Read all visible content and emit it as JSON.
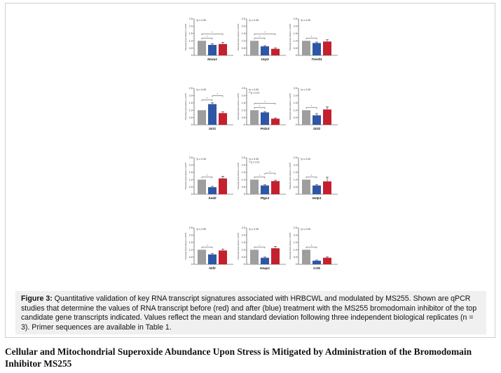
{
  "figure": {
    "caption_label": "Figure 3:",
    "caption_text": " Quantitative validation of key RNA transcript signatures associated with HRBCWL and modulated by MS255. Shown are qPCR studies that determine the values of RNA transcript before (red) and after (blue) treatment with the MS255 bromodomain inhibitor of the top candidate gene transcripts indicated. Values reflect the mean and standard deviation following three independent biological replicates (n = 3). Primer sequences are available in Table 1."
  },
  "section_heading": "Cellular and Mitochondrial Superoxide Abundance Upon Stress is Mitigated by Administration of the Bromodomain Inhibitor MS255",
  "colors": {
    "control": "#9e9e9e",
    "after": "#2e56a6",
    "before": "#c4202e"
  },
  "chart_data": [
    {
      "type": "bar",
      "xlabel": "Noxa1",
      "ylabel": "Transcript levels relative to HPRT",
      "ylim": [
        0,
        2.5
      ],
      "yticks": [
        "0",
        "0.5",
        "1.0",
        "1.5",
        "2.0",
        "2.5"
      ],
      "values": [
        1.0,
        0.72,
        0.78
      ],
      "errors": [
        0.0,
        0.08,
        0.1
      ],
      "significance": [
        "*p ≤ 0.05"
      ],
      "brackets": [
        [
          0,
          1
        ],
        [
          0,
          2
        ]
      ]
    },
    {
      "type": "bar",
      "xlabel": "Ucp3",
      "ylabel": "Transcript levels relative to HPRT",
      "ylim": [
        0,
        2.5
      ],
      "yticks": [
        "0",
        "0.5",
        "1.0",
        "1.5",
        "2.0",
        "2.5"
      ],
      "values": [
        1.0,
        0.62,
        0.45
      ],
      "errors": [
        0.0,
        0.05,
        0.07
      ],
      "significance": [
        "*p ≤ 0.05"
      ],
      "brackets": [
        [
          0,
          1
        ],
        [
          0,
          2
        ]
      ]
    },
    {
      "type": "bar",
      "xlabel": "Txnrd1",
      "ylabel": "Transcript levels relative to HPRT",
      "ylim": [
        0,
        2.5
      ],
      "yticks": [
        "0",
        "0.5",
        "1.0",
        "1.5",
        "2.0",
        "2.5"
      ],
      "values": [
        1.0,
        0.85,
        0.95
      ],
      "errors": [
        0.0,
        0.06,
        0.12
      ],
      "significance": [
        "*p ≤ 0.05"
      ],
      "brackets": [
        [
          0,
          1
        ]
      ]
    },
    {
      "type": "bar",
      "xlabel": "Sirt1",
      "ylabel": "Transcript levels relative to HPRT",
      "ylim": [
        0,
        2.5
      ],
      "yticks": [
        "0",
        "0.5",
        "1.0",
        "1.5",
        "2.0",
        "2.5"
      ],
      "values": [
        1.0,
        1.42,
        0.8
      ],
      "errors": [
        0.0,
        0.1,
        0.08
      ],
      "significance": [
        "*p ≤ 0.05"
      ],
      "brackets": [
        [
          0,
          1
        ],
        [
          1,
          2
        ]
      ]
    },
    {
      "type": "bar",
      "xlabel": "Prdx3",
      "ylabel": "Transcript levels relative to HPRT",
      "ylim": [
        0,
        2.5
      ],
      "yticks": [
        "0",
        "0.5",
        "1.0",
        "1.5",
        "2.0",
        "2.5"
      ],
      "values": [
        1.0,
        0.85,
        0.42
      ],
      "errors": [
        0.0,
        0.06,
        0.05
      ],
      "significance": [
        "*p ≤ 0.05",
        "**p ≤ 0.01"
      ],
      "brackets": [
        [
          0,
          1
        ],
        [
          0,
          2
        ]
      ]
    },
    {
      "type": "bar",
      "xlabel": "Sirt2",
      "ylabel": "Transcript levels relative to HPRT",
      "ylim": [
        0,
        2.5
      ],
      "yticks": [
        "0",
        "0.5",
        "1.0",
        "1.5",
        "2.0",
        "2.5"
      ],
      "values": [
        1.0,
        0.65,
        1.05
      ],
      "errors": [
        0.0,
        0.12,
        0.18
      ],
      "significance": [
        "*p ≤ 0.05"
      ],
      "brackets": [
        [
          0,
          1
        ]
      ]
    },
    {
      "type": "bar",
      "xlabel": "Sod2",
      "ylabel": "Transcript levels relative to HPRT",
      "ylim": [
        0,
        2.5
      ],
      "yticks": [
        "0",
        "0.5",
        "1.0",
        "1.5",
        "2.0",
        "2.5"
      ],
      "values": [
        1.0,
        0.48,
        1.08
      ],
      "errors": [
        0.0,
        0.06,
        0.15
      ],
      "significance": [
        "*p ≤ 0.05"
      ],
      "brackets": [
        [
          0,
          1
        ]
      ]
    },
    {
      "type": "bar",
      "xlabel": "Ptgs1",
      "ylabel": "Transcript levels relative to HPRT",
      "ylim": [
        0,
        2.5
      ],
      "yticks": [
        "0",
        "0.5",
        "1.0",
        "1.5",
        "2.0",
        "2.5"
      ],
      "values": [
        1.0,
        0.6,
        0.9
      ],
      "errors": [
        0.0,
        0.05,
        0.06
      ],
      "significance": [
        "*p ≤ 0.05",
        "**p ≤ 0.01"
      ],
      "brackets": [
        [
          0,
          1
        ],
        [
          1,
          2
        ]
      ]
    },
    {
      "type": "bar",
      "xlabel": "Gstp1",
      "ylabel": "Transcript levels relative to HPRT",
      "ylim": [
        0,
        2.5
      ],
      "yticks": [
        "0",
        "0.5",
        "1.0",
        "1.5",
        "2.0",
        "2.5"
      ],
      "values": [
        1.0,
        0.6,
        0.88
      ],
      "errors": [
        0.0,
        0.05,
        0.28
      ],
      "significance": [
        "*p ≤ 0.05"
      ],
      "brackets": [
        [
          0,
          1
        ]
      ]
    },
    {
      "type": "bar",
      "xlabel": "Nrf2",
      "ylabel": "Transcript levels relative to HPRT",
      "ylim": [
        0,
        2.5
      ],
      "yticks": [
        "0",
        "0.5",
        "1.0",
        "1.5",
        "2.0",
        "2.5"
      ],
      "values": [
        1.0,
        0.68,
        0.95
      ],
      "errors": [
        0.0,
        0.06,
        0.1
      ],
      "significance": [
        "*p ≤ 0.05"
      ],
      "brackets": [
        [
          0,
          1
        ]
      ]
    },
    {
      "type": "bar",
      "xlabel": "Keap1",
      "ylabel": "Transcript levels relative to HPRT",
      "ylim": [
        0,
        2.5
      ],
      "yticks": [
        "0",
        "0.5",
        "1.0",
        "1.5",
        "2.0",
        "2.5"
      ],
      "values": [
        1.0,
        0.45,
        1.1
      ],
      "errors": [
        0.0,
        0.05,
        0.12
      ],
      "significance": [
        "*p ≤ 0.05"
      ],
      "brackets": [
        [
          0,
          1
        ]
      ]
    },
    {
      "type": "bar",
      "xlabel": "Ccl5",
      "ylabel": "Transcript levels relative to HPRT",
      "ylim": [
        0,
        2.5
      ],
      "yticks": [
        "0",
        "0.5",
        "1.0",
        "1.5",
        "2.0",
        "2.5"
      ],
      "values": [
        1.0,
        0.25,
        0.45
      ],
      "errors": [
        0.0,
        0.04,
        0.06
      ],
      "significance": [
        "*p ≤ 0.05"
      ],
      "brackets": [
        [
          0,
          1
        ]
      ]
    }
  ]
}
